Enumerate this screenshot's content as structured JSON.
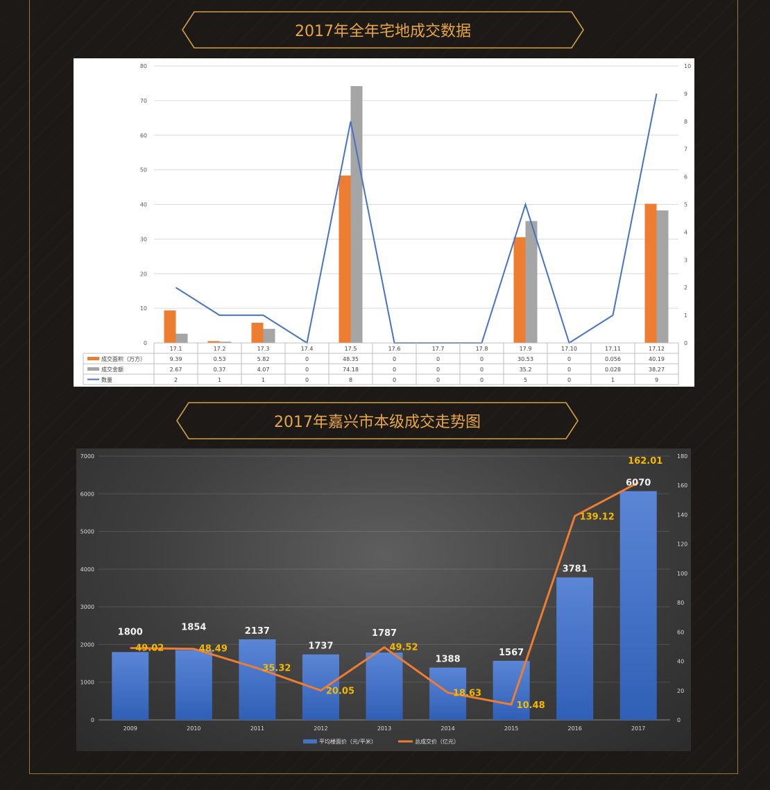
{
  "banner1": {
    "title": "2017年全年宅地成交数据"
  },
  "banner2": {
    "title": "2017年嘉兴市本级成交走势图"
  },
  "chart_data": [
    {
      "type": "bar",
      "categories": [
        "17.1",
        "17.2",
        "17.3",
        "17.4",
        "17.5",
        "17.6",
        "17.7",
        "17.8",
        "17.9",
        "17.10",
        "17.11",
        "17.12"
      ],
      "y_left_ticks": [
        "0",
        "10",
        "20",
        "30",
        "40",
        "50",
        "60",
        "70",
        "80"
      ],
      "y_right_ticks": [
        "0",
        "1",
        "2",
        "3",
        "4",
        "5",
        "6",
        "7",
        "8",
        "9",
        "10"
      ],
      "ylim": [
        0,
        80
      ],
      "y2lim": [
        0,
        10
      ],
      "series": [
        {
          "name": "成交面积（万方）",
          "kind": "bar",
          "axis": "left",
          "color": "#ed7d31",
          "values": [
            9.39,
            0.53,
            5.82,
            0,
            48.35,
            0,
            0,
            0,
            30.53,
            0,
            0.056,
            40.19
          ],
          "labels": [
            "9.39",
            "0.53",
            "5.82",
            "0",
            "48.35",
            "0",
            "0",
            "0",
            "30.53",
            "0",
            "0.056",
            "40.19"
          ]
        },
        {
          "name": "成交金额",
          "kind": "bar",
          "axis": "left",
          "color": "#a5a5a5",
          "values": [
            2.67,
            0.37,
            4.07,
            0,
            74.18,
            0,
            0,
            0,
            35.2,
            0,
            0.028,
            38.27
          ],
          "labels": [
            "2.67",
            "0.37",
            "4.07",
            "0",
            "74.18",
            "0",
            "0",
            "0",
            "35.2",
            "0",
            "0.028",
            "38.27"
          ]
        },
        {
          "name": "数量",
          "kind": "line",
          "axis": "right",
          "color": "#4472c4",
          "values": [
            2,
            1,
            1,
            0,
            8,
            0,
            0,
            0,
            5,
            0,
            1,
            9
          ],
          "labels": [
            "2",
            "1",
            "1",
            "0",
            "8",
            "0",
            "0",
            "0",
            "5",
            "0",
            "1",
            "9"
          ]
        }
      ]
    },
    {
      "type": "bar",
      "categories": [
        "2009",
        "2010",
        "2011",
        "2012",
        "2013",
        "2014",
        "2015",
        "2016",
        "2017"
      ],
      "y_left_ticks": [
        "0",
        "1000",
        "2000",
        "3000",
        "4000",
        "5000",
        "6000",
        "7000"
      ],
      "y_right_ticks": [
        "0",
        "20",
        "40",
        "60",
        "80",
        "100",
        "120",
        "140",
        "160",
        "180"
      ],
      "ylim": [
        0,
        7000
      ],
      "y2lim": [
        0,
        180
      ],
      "series": [
        {
          "name": "平均楼面价（元/平米）",
          "kind": "bar",
          "axis": "left",
          "color": "#4472c4",
          "values": [
            1800,
            1854,
            2137,
            1737,
            1787,
            1388,
            1567,
            3781,
            6070
          ],
          "labels": [
            "1800",
            "1854",
            "2137",
            "1737",
            "1787",
            "1388",
            "1567",
            "3781",
            "6070"
          ]
        },
        {
          "name": "总成交价（亿元）",
          "kind": "line",
          "axis": "right",
          "color": "#ed7d31",
          "values": [
            49.02,
            48.49,
            35.32,
            20.05,
            49.52,
            18.63,
            10.48,
            139.12,
            162.01
          ],
          "labels": [
            "49.02",
            "48.49",
            "35.32",
            "20.05",
            "49.52",
            "18.63",
            "10.48",
            "139.12",
            "162.01"
          ]
        }
      ]
    }
  ]
}
